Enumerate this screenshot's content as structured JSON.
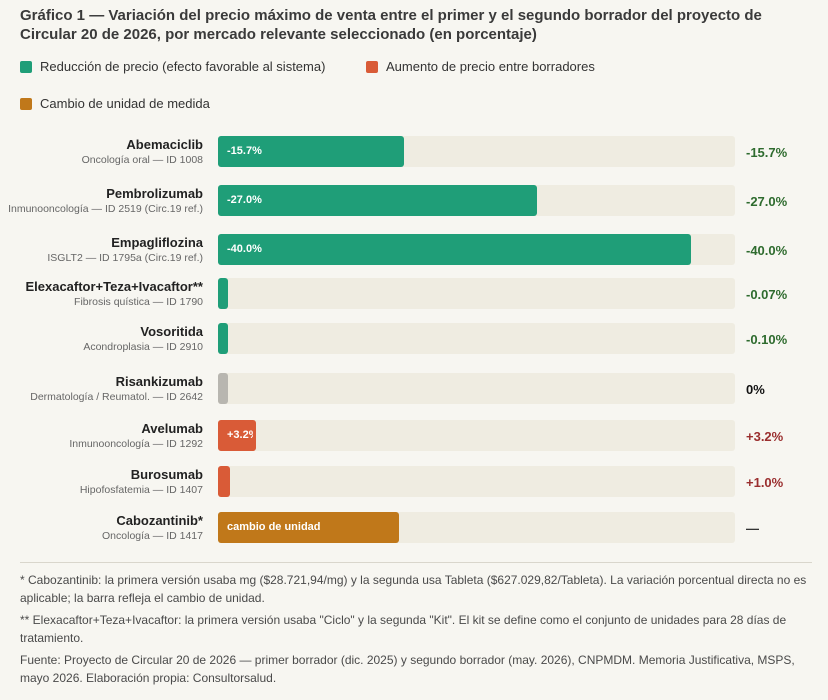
{
  "chart_data": {
    "type": "bar",
    "orientation": "horizontal",
    "title": "Gráfico 1 — Variación del precio máximo de venta entre el primer y el segundo borrador del proyecto de Circular 20 de 2026, por mercado relevante seleccionado (en porcentaje)",
    "xlim": [
      0,
      40
    ],
    "legend_position": "top",
    "legend": [
      {
        "key": "reduction",
        "label": "Reducción de precio (efecto favorable al sistema)",
        "color": "#1f9e78"
      },
      {
        "key": "increase",
        "label": "Aumento de precio entre borradores",
        "color": "#d95b37"
      },
      {
        "key": "unit",
        "label": "Cambio de unidad de medida",
        "color": "#c0781a"
      }
    ],
    "rows": [
      {
        "name": "Abemaciclib",
        "subtitle": "Oncología oral — ID 1008",
        "value": -15.7,
        "bar_text": "-15.7%",
        "value_text": "-15.7%",
        "kind": "reduction",
        "color": "#1f9e78",
        "value_color": "#2e6b2e"
      },
      {
        "name": "Pembrolizumab",
        "subtitle": "Inmunooncología — ID 2519 (Circ.19 ref.)",
        "value": -27.0,
        "bar_text": "-27.0%",
        "value_text": "-27.0%",
        "kind": "reduction",
        "color": "#1f9e78",
        "value_color": "#2e6b2e"
      },
      {
        "name": "Empagliflozina",
        "subtitle": "ISGLT2 — ID 1795a (Circ.19 ref.)",
        "value": -40.0,
        "bar_text": "-40.0%",
        "value_text": "-40.0%",
        "kind": "reduction",
        "color": "#1f9e78",
        "value_color": "#2e6b2e"
      },
      {
        "name": "Elexacaftor+Teza+Ivacaftor**",
        "subtitle": "Fibrosis quística — ID 1790",
        "value": -0.07,
        "bar_text": "",
        "value_text": "-0.07%",
        "kind": "reduction",
        "color": "#1f9e78",
        "value_color": "#2e6b2e"
      },
      {
        "name": "Vosoritida",
        "subtitle": "Acondroplasia — ID 2910",
        "value": -0.1,
        "bar_text": "",
        "value_text": "-0.10%",
        "kind": "reduction",
        "color": "#1f9e78",
        "value_color": "#2e6b2e"
      },
      {
        "name": "Risankizumab",
        "subtitle": "Dermatología / Reumatol. — ID 2642",
        "value": 0,
        "bar_text": "",
        "value_text": "0%",
        "kind": "neutral",
        "color": "#b8b6b0",
        "value_color": "#111111"
      },
      {
        "name": "Avelumab",
        "subtitle": "Inmunooncología — ID 1292",
        "value": 3.2,
        "bar_text": "+3.2%",
        "value_text": "+3.2%",
        "kind": "increase",
        "color": "#d95b37",
        "value_color": "#9a2e2e"
      },
      {
        "name": "Burosumab",
        "subtitle": "Hipofosfatemia — ID 1407",
        "value": 1.0,
        "bar_text": "",
        "value_text": "+1.0%",
        "kind": "increase",
        "color": "#d95b37",
        "value_color": "#9a2e2e"
      },
      {
        "name": "Cabozantinib*",
        "subtitle": "Oncología — ID 1417",
        "value": null,
        "bar_fraction": 0.35,
        "bar_text": "cambio de unidad",
        "value_text": "—",
        "kind": "unit",
        "color": "#c0781a",
        "value_color": "#333333"
      }
    ]
  },
  "notes": [
    "* Cabozantinib: la primera versión usaba mg ($28.721,94/mg) y la segunda usa Tableta ($627.029,82/Tableta). La variación porcentual directa no es aplicable; la barra refleja el cambio de unidad.",
    "** Elexacaftor+Teza+Ivacaftor: la primera versión usaba \"Ciclo\" y la segunda \"Kit\". El kit se define como el conjunto de unidades para 28 días de tratamiento.",
    "Fuente: Proyecto de Circular 20 de 2026 — primer borrador (dic. 2025) y segundo borrador (may. 2026), CNPMDM. Memoria Justificativa, MSPS, mayo 2026. Elaboración propia: Consultorsalud."
  ]
}
